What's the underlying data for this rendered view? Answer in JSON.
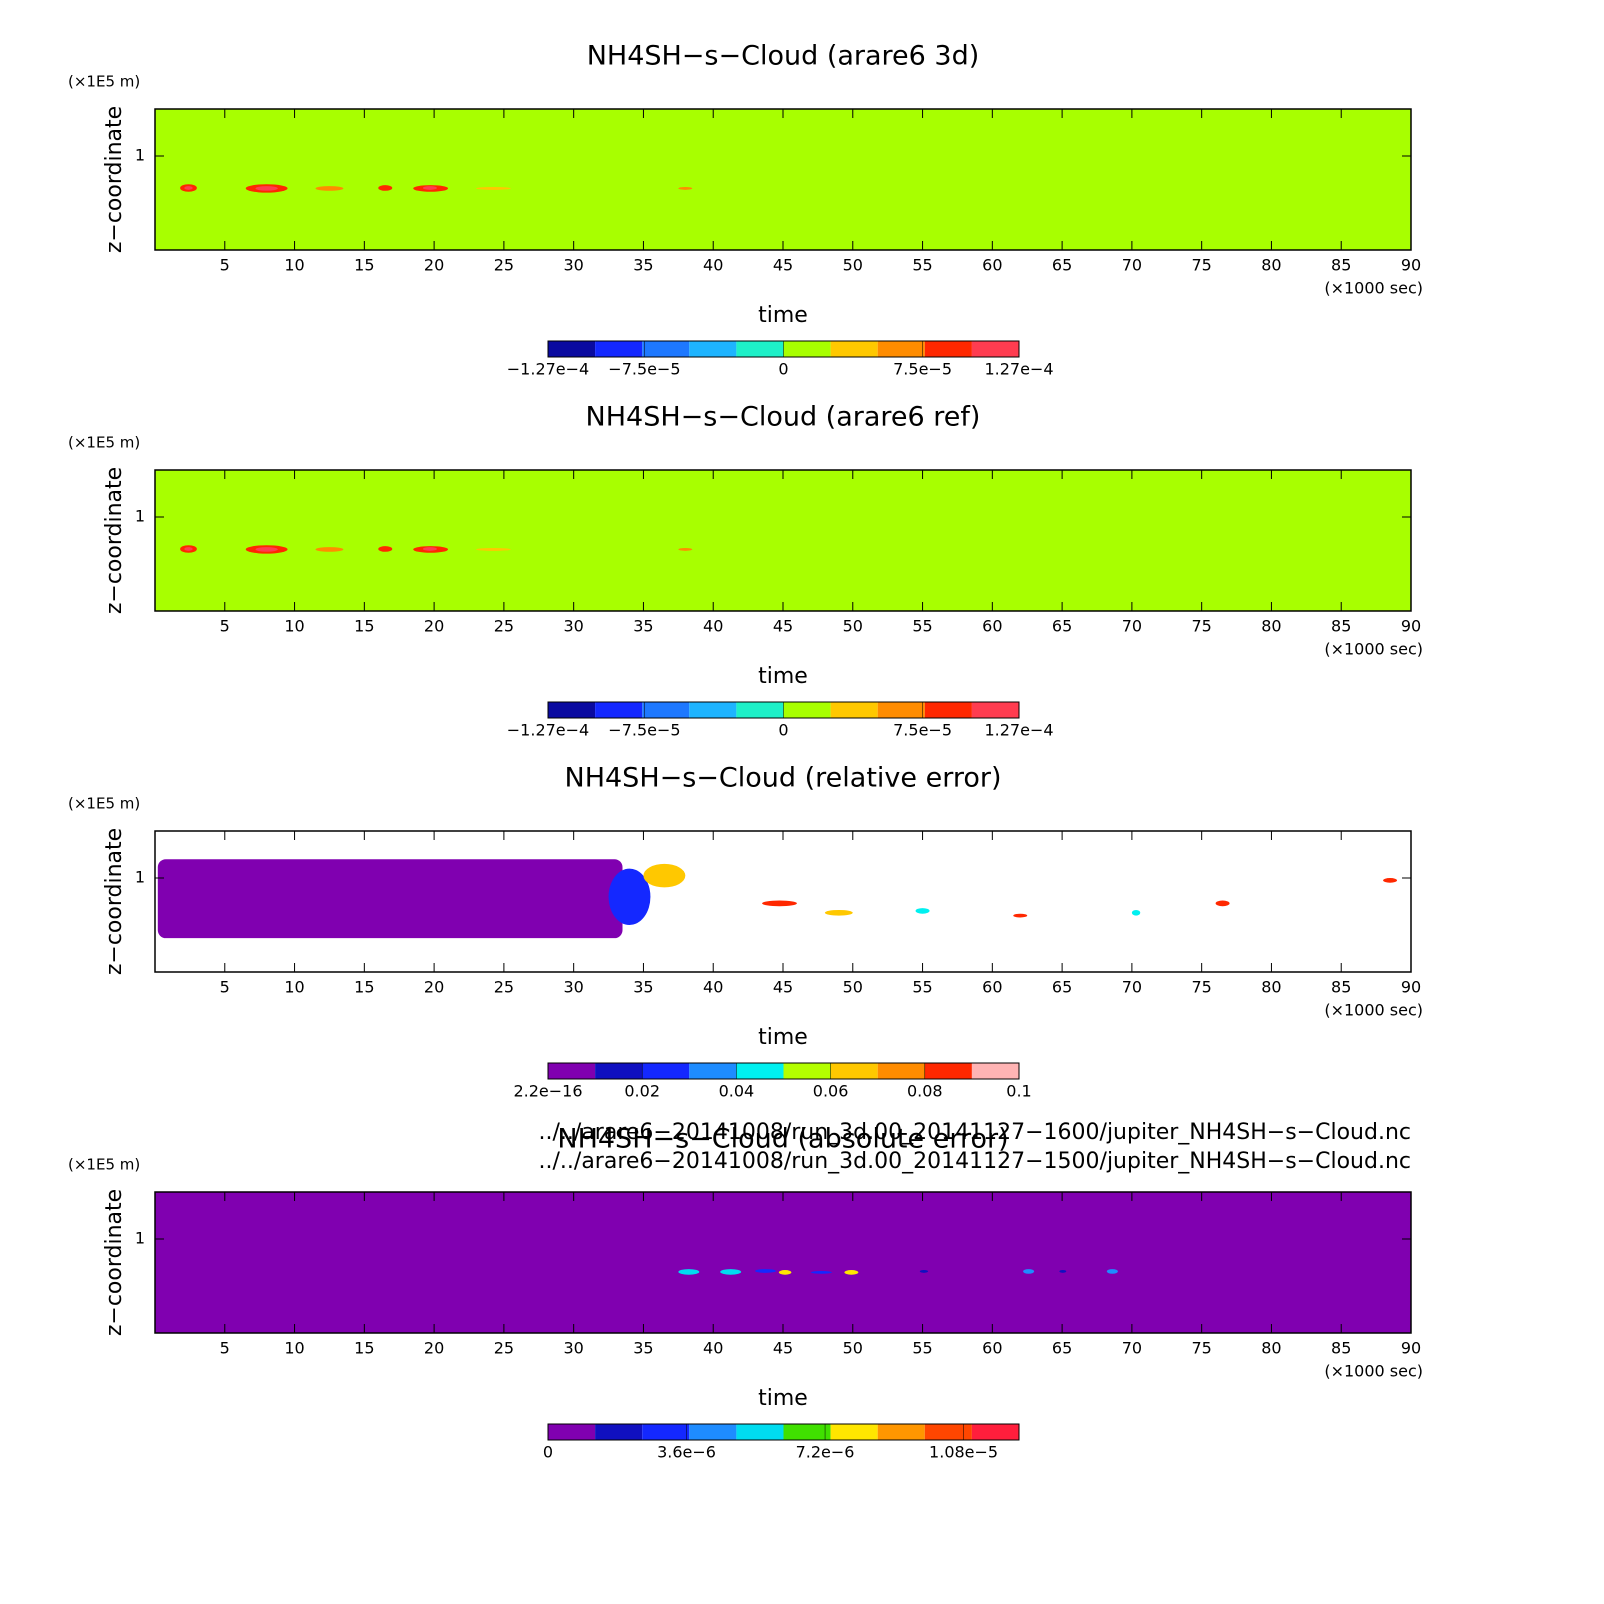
{
  "chart_data": [
    {
      "type": "contour",
      "title": "NH4SH−s−Cloud (arare6 3d)",
      "xlabel": "time",
      "ylabel": "z−coordinate",
      "xunit": "(×1000 sec)",
      "yunit": "(×1E5 m)",
      "xlim": [
        0,
        90
      ],
      "xticks": [
        5,
        10,
        15,
        20,
        25,
        30,
        35,
        40,
        45,
        50,
        55,
        60,
        65,
        70,
        75,
        80,
        85,
        90
      ],
      "ylim": [
        0,
        1.5
      ],
      "yticks": [
        1
      ],
      "colorbar": {
        "clim": [
          -0.000127,
          0.000127
        ],
        "ticks": [
          {
            "value": -0.000127,
            "label": "−1.27e−4"
          },
          {
            "value": -7.5e-05,
            "label": "−7.5e−5"
          },
          0,
          {
            "value": 7.5e-05,
            "label": "7.5e−5"
          },
          {
            "value": 0.000127,
            "label": "1.27e−4"
          }
        ],
        "colors": [
          "#0a0aa0",
          "#1428ff",
          "#1e78ff",
          "#1eb4ff",
          "#1ef0c8",
          "#a8ff00",
          "#ffc800",
          "#ff8c00",
          "#ff2800",
          "#ff3c50"
        ]
      },
      "fill_value": 0,
      "patches": [
        {
          "x": [
            1.8,
            3.0
          ],
          "z": [
            0.62,
            0.7
          ],
          "value": 8e-05
        },
        {
          "x": [
            6.5,
            9.5
          ],
          "z": [
            0.61,
            0.7
          ],
          "value": 8e-05
        },
        {
          "x": [
            11.5,
            13.5
          ],
          "z": [
            0.63,
            0.68
          ],
          "value": 6e-05
        },
        {
          "x": [
            16,
            17
          ],
          "z": [
            0.63,
            0.69
          ],
          "value": 8e-05
        },
        {
          "x": [
            18.5,
            21
          ],
          "z": [
            0.62,
            0.69
          ],
          "value": 8e-05
        },
        {
          "x": [
            23,
            25.5
          ],
          "z": [
            0.64,
            0.67
          ],
          "value": 4e-05
        },
        {
          "x": [
            37.5,
            38.5
          ],
          "z": [
            0.64,
            0.67
          ],
          "value": 6e-05
        },
        {
          "x": [
            2.1,
            2.7
          ],
          "z": [
            0.64,
            0.68
          ],
          "value": 0.00011
        },
        {
          "x": [
            7.2,
            8.8
          ],
          "z": [
            0.63,
            0.68
          ],
          "value": 0.00011
        },
        {
          "x": [
            19.2,
            20.2
          ],
          "z": [
            0.64,
            0.68
          ],
          "value": 0.00011
        }
      ]
    },
    {
      "type": "contour",
      "title": "NH4SH−s−Cloud (arare6 ref)",
      "xlabel": "time",
      "ylabel": "z−coordinate",
      "xunit": "(×1000 sec)",
      "yunit": "(×1E5 m)",
      "xlim": [
        0,
        90
      ],
      "xticks": [
        5,
        10,
        15,
        20,
        25,
        30,
        35,
        40,
        45,
        50,
        55,
        60,
        65,
        70,
        75,
        80,
        85,
        90
      ],
      "ylim": [
        0,
        1.5
      ],
      "yticks": [
        1
      ],
      "colorbar": {
        "clim": [
          -0.000127,
          0.000127
        ],
        "ticks": [
          {
            "value": -0.000127,
            "label": "−1.27e−4"
          },
          {
            "value": -7.5e-05,
            "label": "−7.5e−5"
          },
          0,
          {
            "value": 7.5e-05,
            "label": "7.5e−5"
          },
          {
            "value": 0.000127,
            "label": "1.27e−4"
          }
        ],
        "colors": [
          "#0a0aa0",
          "#1428ff",
          "#1e78ff",
          "#1eb4ff",
          "#1ef0c8",
          "#a8ff00",
          "#ffc800",
          "#ff8c00",
          "#ff2800",
          "#ff3c50"
        ]
      },
      "fill_value": 0,
      "patches": [
        {
          "x": [
            1.8,
            3.0
          ],
          "z": [
            0.62,
            0.7
          ],
          "value": 8e-05
        },
        {
          "x": [
            6.5,
            9.5
          ],
          "z": [
            0.61,
            0.7
          ],
          "value": 8e-05
        },
        {
          "x": [
            11.5,
            13.5
          ],
          "z": [
            0.63,
            0.68
          ],
          "value": 6e-05
        },
        {
          "x": [
            16,
            17
          ],
          "z": [
            0.63,
            0.69
          ],
          "value": 8e-05
        },
        {
          "x": [
            18.5,
            21
          ],
          "z": [
            0.62,
            0.69
          ],
          "value": 8e-05
        },
        {
          "x": [
            23,
            25.5
          ],
          "z": [
            0.64,
            0.67
          ],
          "value": 4e-05
        },
        {
          "x": [
            37.5,
            38.5
          ],
          "z": [
            0.64,
            0.67
          ],
          "value": 6e-05
        },
        {
          "x": [
            2.1,
            2.7
          ],
          "z": [
            0.64,
            0.68
          ],
          "value": 0.00011
        },
        {
          "x": [
            7.2,
            8.8
          ],
          "z": [
            0.63,
            0.68
          ],
          "value": 0.00011
        },
        {
          "x": [
            19.2,
            20.2
          ],
          "z": [
            0.64,
            0.68
          ],
          "value": 0.00011
        }
      ]
    },
    {
      "type": "contour",
      "title": "NH4SH−s−Cloud (relative error)",
      "xlabel": "time",
      "ylabel": "z−coordinate",
      "xunit": "(×1000 sec)",
      "yunit": "(×1E5 m)",
      "xlim": [
        0,
        90
      ],
      "xticks": [
        5,
        10,
        15,
        20,
        25,
        30,
        35,
        40,
        45,
        50,
        55,
        60,
        65,
        70,
        75,
        80,
        85,
        90
      ],
      "ylim": [
        0,
        1.5
      ],
      "yticks": [
        1
      ],
      "colorbar": {
        "clim": [
          2.2e-16,
          0.1
        ],
        "ticks": [
          {
            "value": 2.2e-16,
            "label": "2.2e−16"
          },
          0.02,
          0.04,
          0.06,
          0.08,
          0.1
        ],
        "colors": [
          "#8000b0",
          "#1010c0",
          "#1428ff",
          "#1e8cff",
          "#00f0f0",
          "#b4ff00",
          "#ffc800",
          "#ff8c00",
          "#ff2800",
          "#ffb4b4"
        ]
      },
      "fill_value": null,
      "patches": [
        {
          "x": [
            0.2,
            33.5
          ],
          "z": [
            0.36,
            1.2
          ],
          "value": 2.2e-16
        },
        {
          "x": [
            32.5,
            35.5
          ],
          "z": [
            0.5,
            1.1
          ],
          "value": 0.03
        },
        {
          "x": [
            35,
            38
          ],
          "z": [
            0.9,
            1.15
          ],
          "value": 0.07
        },
        {
          "x": [
            43.5,
            46
          ],
          "z": [
            0.7,
            0.76
          ],
          "value": 0.085
        },
        {
          "x": [
            48,
            50
          ],
          "z": [
            0.6,
            0.66
          ],
          "value": 0.065
        },
        {
          "x": [
            54.5,
            55.5
          ],
          "z": [
            0.62,
            0.68
          ],
          "value": 0.05
        },
        {
          "x": [
            61.5,
            62.5
          ],
          "z": [
            0.58,
            0.62
          ],
          "value": 0.09
        },
        {
          "x": [
            70,
            70.6
          ],
          "z": [
            0.6,
            0.66
          ],
          "value": 0.05
        },
        {
          "x": [
            76,
            77
          ],
          "z": [
            0.7,
            0.76
          ],
          "value": 0.085
        },
        {
          "x": [
            88,
            89
          ],
          "z": [
            0.95,
            1.0
          ],
          "value": 0.09
        }
      ]
    },
    {
      "type": "contour",
      "title": "NH4SH−s−Cloud (absolute error)",
      "xlabel": "time",
      "ylabel": "z−coordinate",
      "xunit": "(×1000 sec)",
      "yunit": "(×1E5 m)",
      "xlim": [
        0,
        90
      ],
      "xticks": [
        5,
        10,
        15,
        20,
        25,
        30,
        35,
        40,
        45,
        50,
        55,
        60,
        65,
        70,
        75,
        80,
        85,
        90
      ],
      "ylim": [
        0,
        1.5
      ],
      "yticks": [
        1
      ],
      "colorbar": {
        "clim": [
          0,
          1.224e-05
        ],
        "ticks": [
          0,
          {
            "value": 3.6e-06,
            "label": "3.6e−6"
          },
          {
            "value": 7.2e-06,
            "label": "7.2e−6"
          },
          {
            "value": 1.08e-05,
            "label": "1.08e−5"
          }
        ],
        "colors": [
          "#8000b0",
          "#1010c0",
          "#1428ff",
          "#1e8cff",
          "#00dcf0",
          "#40e000",
          "#ffe600",
          "#ff9600",
          "#ff4600",
          "#ff1e3c"
        ]
      },
      "fill_value": 0,
      "patches": [
        {
          "x": [
            37.5,
            39
          ],
          "z": [
            0.62,
            0.68
          ],
          "value": 5e-06
        },
        {
          "x": [
            40.5,
            42
          ],
          "z": [
            0.62,
            0.68
          ],
          "value": 6e-06
        },
        {
          "x": [
            43,
            44.5
          ],
          "z": [
            0.64,
            0.68
          ],
          "value": 3e-06
        },
        {
          "x": [
            44.7,
            45.6
          ],
          "z": [
            0.62,
            0.67
          ],
          "value": 7.5e-06
        },
        {
          "x": [
            47,
            48.5
          ],
          "z": [
            0.63,
            0.66
          ],
          "value": 3e-06
        },
        {
          "x": [
            49.4,
            50.4
          ],
          "z": [
            0.62,
            0.67
          ],
          "value": 7.5e-06
        },
        {
          "x": [
            54.8,
            55.4
          ],
          "z": [
            0.64,
            0.67
          ],
          "value": 2e-06
        },
        {
          "x": [
            62.2,
            63
          ],
          "z": [
            0.63,
            0.68
          ],
          "value": 4e-06
        },
        {
          "x": [
            64.8,
            65.3
          ],
          "z": [
            0.64,
            0.67
          ],
          "value": 2e-06
        },
        {
          "x": [
            68.2,
            69
          ],
          "z": [
            0.63,
            0.68
          ],
          "value": 4e-06
        }
      ]
    }
  ],
  "footnotes": [
    "../../arare6−20141008/run_3d.00_20141127−1600/jupiter_NH4SH−s−Cloud.nc",
    "../../arare6−20141008/run_3d.00_20141127−1500/jupiter_NH4SH−s−Cloud.nc"
  ]
}
